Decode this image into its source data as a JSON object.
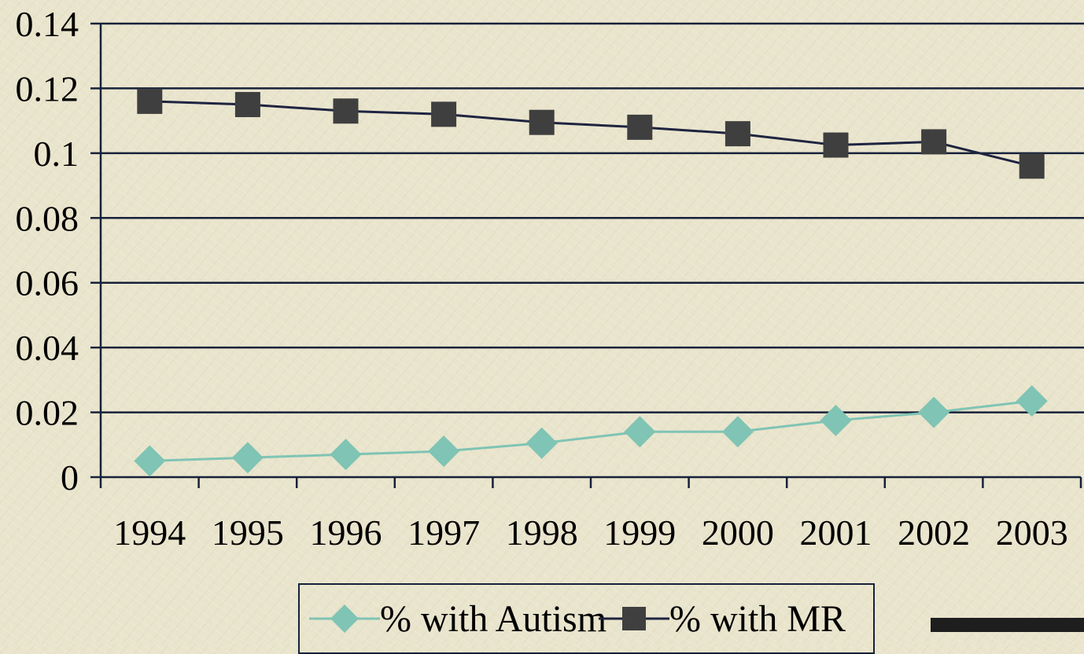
{
  "chart_data": {
    "type": "line",
    "categories": [
      "1994",
      "1995",
      "1996",
      "1997",
      "1998",
      "1999",
      "2000",
      "2001",
      "2002",
      "2003"
    ],
    "series": [
      {
        "name": "% with Autism",
        "color": "#7fc4b4",
        "marker": "diamond",
        "values": [
          0.005,
          0.006,
          0.007,
          0.008,
          0.0105,
          0.014,
          0.014,
          0.0175,
          0.02,
          0.0235
        ]
      },
      {
        "name": "% with MR",
        "color": "#3f3f3f",
        "line_color": "#1e2440",
        "marker": "square",
        "values": [
          0.116,
          0.115,
          0.113,
          0.112,
          0.1095,
          0.108,
          0.106,
          0.1025,
          0.1035,
          0.096
        ]
      }
    ],
    "y_ticks": [
      "0",
      "0.02",
      "0.04",
      "0.06",
      "0.08",
      "0.1",
      "0.12",
      "0.14"
    ],
    "ylim": [
      0,
      0.14
    ],
    "grid": true,
    "legend_position": "bottom",
    "title": "",
    "xlabel": "",
    "ylabel": ""
  },
  "legend": {
    "items": [
      {
        "label": "% with Autism",
        "icon": "diamond-marker-icon"
      },
      {
        "label": "% with MR",
        "icon": "square-marker-icon"
      }
    ]
  }
}
